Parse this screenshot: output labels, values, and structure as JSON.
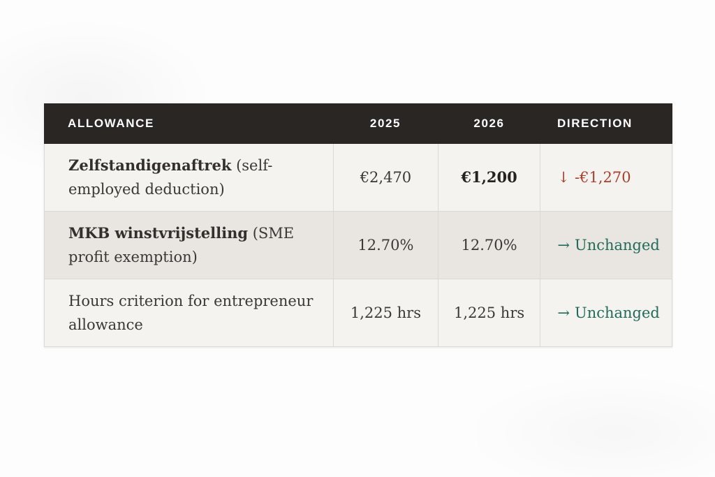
{
  "table": {
    "header": {
      "allowance": "ALLOWANCE",
      "y2025": "2025",
      "y2026": "2026",
      "direction": "DIRECTION"
    },
    "rows": [
      {
        "label_bold": "Zelfstandigenaftrek",
        "label_regular": "(self-employed deduction)",
        "y2025": "€2,470",
        "y2026": "€1,200",
        "arrow": "↓",
        "direction": "-€1,270",
        "status": "decrease"
      },
      {
        "label_bold": "MKB winstvrijstelling",
        "label_regular": "(SME profit exemption)",
        "y2025": "12.70%",
        "y2026": "12.70%",
        "arrow": "→",
        "direction": "Unchanged",
        "status": "unchanged"
      },
      {
        "label_bold": "",
        "label_regular": "Hours criterion for entrepreneur allowance",
        "y2025": "1,225 hrs",
        "y2026": "1,225 hrs",
        "arrow": "→",
        "direction": "Unchanged",
        "status": "unchanged"
      }
    ],
    "colors": {
      "header_bg": "#2a2624",
      "decrease": "#a83e2b",
      "unchanged": "#216b5b",
      "row_light": "#f5f3f0",
      "row_alt": "#e9e6e1"
    }
  }
}
